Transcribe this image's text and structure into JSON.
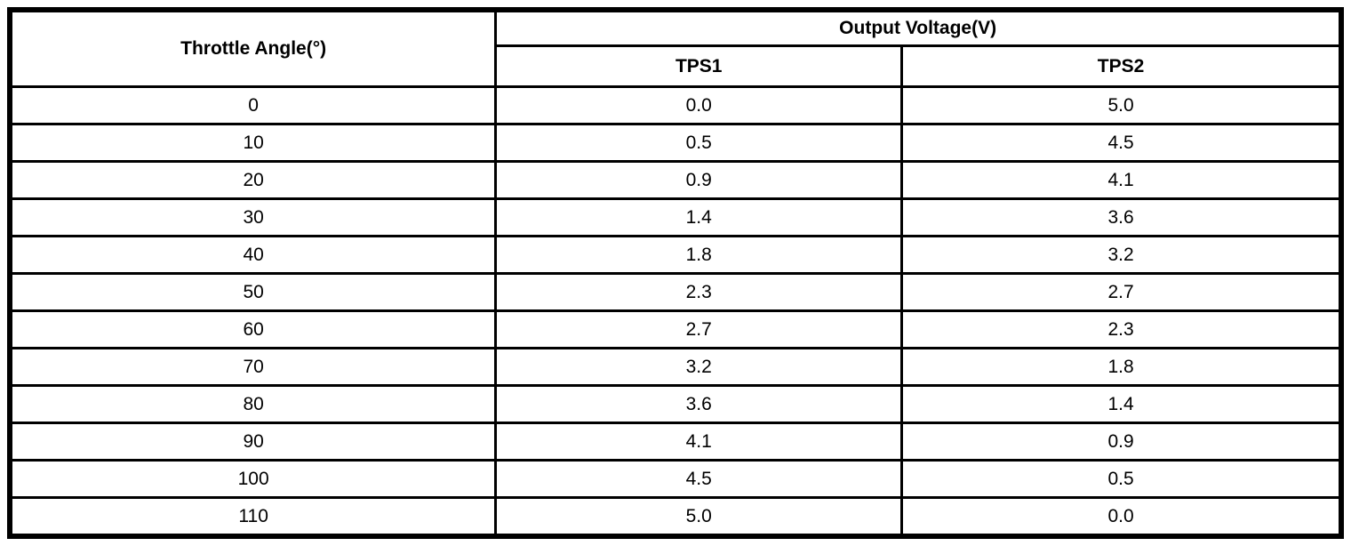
{
  "page": {
    "background": "#ffffff",
    "border_color": "#000000",
    "text_color": "#000000"
  },
  "table": {
    "angle_header": "Throttle Angle(°)",
    "voltage_group_header": "Output Voltage(V)",
    "subheaders": [
      "TPS1",
      "TPS2"
    ],
    "rows": [
      {
        "angle": "0",
        "tps1": "0.0",
        "tps2": "5.0"
      },
      {
        "angle": "10",
        "tps1": "0.5",
        "tps2": "4.5"
      },
      {
        "angle": "20",
        "tps1": "0.9",
        "tps2": "4.1"
      },
      {
        "angle": "30",
        "tps1": "1.4",
        "tps2": "3.6"
      },
      {
        "angle": "40",
        "tps1": "1.8",
        "tps2": "3.2"
      },
      {
        "angle": "50",
        "tps1": "2.3",
        "tps2": "2.7"
      },
      {
        "angle": "60",
        "tps1": "2.7",
        "tps2": "2.3"
      },
      {
        "angle": "70",
        "tps1": "3.2",
        "tps2": "1.8"
      },
      {
        "angle": "80",
        "tps1": "3.6",
        "tps2": "1.4"
      },
      {
        "angle": "90",
        "tps1": "4.1",
        "tps2": "0.9"
      },
      {
        "angle": "100",
        "tps1": "4.5",
        "tps2": "0.5"
      },
      {
        "angle": "110",
        "tps1": "5.0",
        "tps2": "0.0"
      }
    ]
  },
  "chart_data": {
    "type": "table",
    "title": "Output Voltage(V)",
    "columns": [
      "Throttle Angle(°)",
      "TPS1",
      "TPS2"
    ],
    "x": [
      0,
      10,
      20,
      30,
      40,
      50,
      60,
      70,
      80,
      90,
      100,
      110
    ],
    "series": [
      {
        "name": "TPS1",
        "values": [
          0.0,
          0.5,
          0.9,
          1.4,
          1.8,
          2.3,
          2.7,
          3.2,
          3.6,
          4.1,
          4.5,
          5.0
        ]
      },
      {
        "name": "TPS2",
        "values": [
          5.0,
          4.5,
          4.1,
          3.6,
          3.2,
          2.7,
          2.3,
          1.8,
          1.4,
          0.9,
          0.5,
          0.0
        ]
      }
    ]
  }
}
